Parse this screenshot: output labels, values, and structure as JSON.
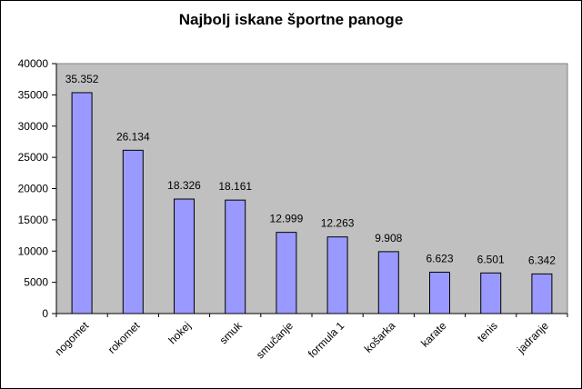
{
  "chart_data": {
    "type": "bar",
    "title": "Najbolj iskane športne panoge",
    "categories": [
      "nogomet",
      "rokomet",
      "hokej",
      "smuk",
      "smučanje",
      "formula 1",
      "košarka",
      "karate",
      "tenis",
      "jadranje"
    ],
    "values": [
      35352,
      26134,
      18326,
      18161,
      12999,
      12263,
      9908,
      6623,
      6501,
      6342
    ],
    "data_labels": [
      "35.352",
      "26.134",
      "18.326",
      "18.161",
      "12.999",
      "12.263",
      "9.908",
      "6.623",
      "6.501",
      "6.342"
    ],
    "y_ticks": [
      "0",
      "5000",
      "10000",
      "15000",
      "20000",
      "25000",
      "30000",
      "35000",
      "40000"
    ],
    "ylim": [
      0,
      40000
    ],
    "xlabel": "",
    "ylabel": "",
    "grid": false,
    "legend": "none",
    "colors": {
      "bar": "#9999ff",
      "plot_area": "#c0c0c0",
      "frame": "#000000"
    }
  }
}
